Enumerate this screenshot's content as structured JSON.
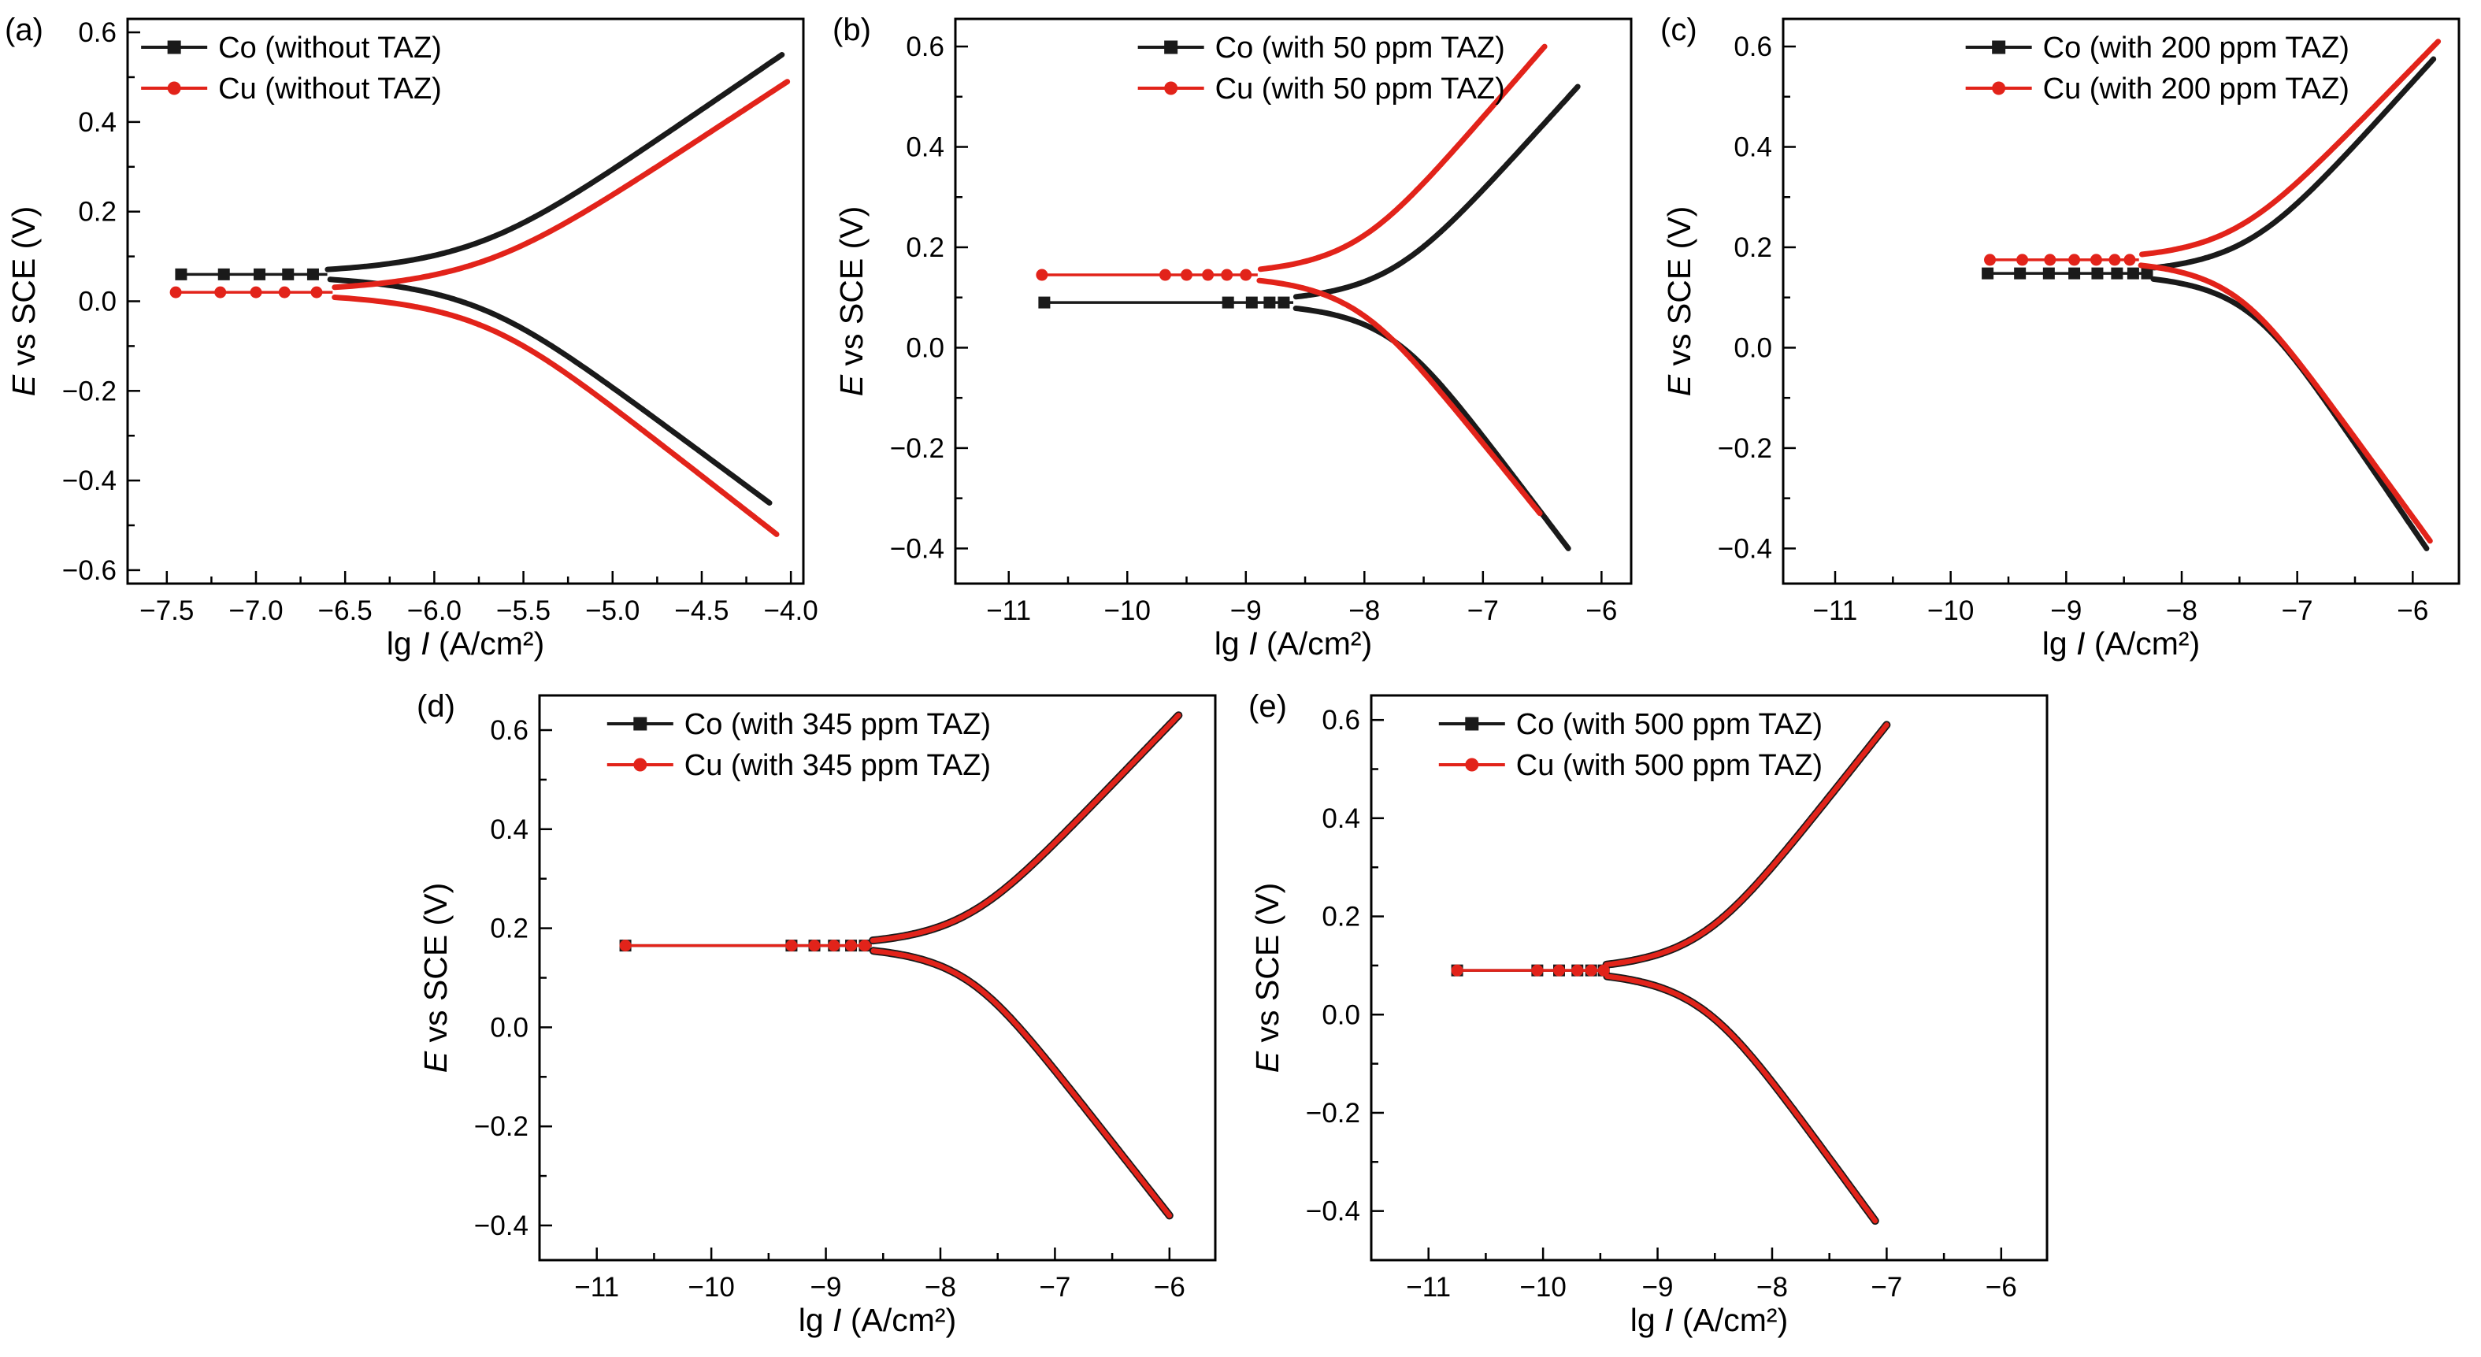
{
  "figure": {
    "background": "#ffffff",
    "colors": {
      "co": "#1a1a1a",
      "cu": "#e2231a"
    }
  },
  "chart_data": [
    {
      "type": "line",
      "panel": "(a)",
      "xlabel": {
        "pre": "lg ",
        "it": "I",
        "post": " (A/cm²)"
      },
      "ylabel": {
        "it": "E",
        "post": " vs SCE (V)"
      },
      "xlim": [
        -7.72,
        -3.93
      ],
      "ylim": [
        -0.63,
        0.63
      ],
      "xticks": [
        -7.5,
        -7.0,
        -6.5,
        -6.0,
        -5.5,
        -5.0,
        -4.5,
        -4.0
      ],
      "xtick_labels": [
        "−7.5",
        "−7.0",
        "−6.5",
        "−6.0",
        "−5.5",
        "−5.0",
        "−4.5",
        "−4.0"
      ],
      "yticks": [
        -0.6,
        -0.4,
        -0.2,
        0.0,
        0.2,
        0.4,
        0.6
      ],
      "ytick_labels": [
        "−0.6",
        "−0.4",
        "−0.2",
        "0.0",
        "0.2",
        "0.4",
        "0.6"
      ],
      "x_minor": 0.25,
      "y_minor": 0.1,
      "legend": {
        "x_frac": 0.02,
        "entries": [
          {
            "label": "Co (without TAZ)",
            "color": "#1a1a1a",
            "marker": "square"
          },
          {
            "label": "Cu (without TAZ)",
            "color": "#e2231a",
            "marker": "circle"
          }
        ]
      },
      "series": [
        {
          "name": "Co",
          "color": "#1a1a1a",
          "marker": "square",
          "ecorr": 0.06,
          "lg_icorr": -5.85,
          "tail_start": -7.42,
          "anodic_end": [
            -4.05,
            0.55
          ],
          "cathodic_end": [
            -4.12,
            -0.45
          ],
          "tail_markers": [
            -7.42,
            -7.18,
            -6.98,
            -6.82,
            -6.68
          ]
        },
        {
          "name": "Cu",
          "color": "#e2231a",
          "marker": "circle",
          "ecorr": 0.02,
          "lg_icorr": -5.82,
          "tail_start": -7.45,
          "anodic_end": [
            -4.02,
            0.49
          ],
          "cathodic_end": [
            -4.08,
            -0.52
          ],
          "tail_markers": [
            -7.45,
            -7.2,
            -7.0,
            -6.84,
            -6.66
          ]
        }
      ]
    },
    {
      "type": "line",
      "panel": "(b)",
      "xlabel": {
        "pre": "lg ",
        "it": "I",
        "post": " (A/cm²)"
      },
      "ylabel": {
        "it": "E",
        "post": " vs SCE (V)"
      },
      "xlim": [
        -11.45,
        -5.75
      ],
      "ylim": [
        -0.47,
        0.655
      ],
      "xticks": [
        -11,
        -10,
        -9,
        -8,
        -7,
        -6
      ],
      "xtick_labels": [
        "−11",
        "−10",
        "−9",
        "−8",
        "−7",
        "−6"
      ],
      "yticks": [
        -0.4,
        -0.2,
        0.0,
        0.2,
        0.4,
        0.6
      ],
      "ytick_labels": [
        "−0.4",
        "−0.2",
        "0.0",
        "0.2",
        "0.4",
        "0.6"
      ],
      "x_minor": 0.5,
      "y_minor": 0.1,
      "legend": {
        "x_frac": 0.27,
        "entries": [
          {
            "label": "Co (with 50 ppm TAZ)",
            "color": "#1a1a1a",
            "marker": "square"
          },
          {
            "label": "Cu (with 50 ppm TAZ)",
            "color": "#e2231a",
            "marker": "circle"
          }
        ]
      },
      "series": [
        {
          "name": "Co",
          "color": "#1a1a1a",
          "marker": "square",
          "ecorr": 0.09,
          "lg_icorr": -7.85,
          "tail_start": -10.7,
          "anodic_end": [
            -6.2,
            0.52
          ],
          "cathodic_end": [
            -6.28,
            -0.4
          ],
          "tail_markers": [
            -10.7,
            -9.15,
            -8.95,
            -8.8,
            -8.68
          ]
        },
        {
          "name": "Cu",
          "color": "#e2231a",
          "marker": "circle",
          "ecorr": 0.145,
          "lg_icorr": -8.15,
          "tail_start": -10.72,
          "anodic_end": [
            -6.48,
            0.6
          ],
          "cathodic_end": [
            -6.52,
            -0.33
          ],
          "tail_markers": [
            -10.72,
            -9.68,
            -9.5,
            -9.32,
            -9.16,
            -9.0
          ]
        }
      ]
    },
    {
      "type": "line",
      "panel": "(c)",
      "xlabel": {
        "pre": "lg ",
        "it": "I",
        "post": " (A/cm²)"
      },
      "ylabel": {
        "it": "E",
        "post": " vs SCE (V)"
      },
      "xlim": [
        -11.45,
        -5.6
      ],
      "ylim": [
        -0.47,
        0.655
      ],
      "xticks": [
        -11,
        -10,
        -9,
        -8,
        -7,
        -6
      ],
      "xtick_labels": [
        "−11",
        "−10",
        "−9",
        "−8",
        "−7",
        "−6"
      ],
      "yticks": [
        -0.4,
        -0.2,
        0.0,
        0.2,
        0.4,
        0.6
      ],
      "ytick_labels": [
        "−0.4",
        "−0.2",
        "0.0",
        "0.2",
        "0.4",
        "0.6"
      ],
      "x_minor": 0.5,
      "y_minor": 0.1,
      "legend": {
        "x_frac": 0.27,
        "entries": [
          {
            "label": "Co (with 200 ppm TAZ)",
            "color": "#1a1a1a",
            "marker": "square"
          },
          {
            "label": "Cu (with 200 ppm TAZ)",
            "color": "#e2231a",
            "marker": "circle"
          }
        ]
      },
      "series": [
        {
          "name": "Co",
          "color": "#1a1a1a",
          "marker": "square",
          "ecorr": 0.148,
          "lg_icorr": -7.5,
          "tail_start": -9.68,
          "anodic_end": [
            -5.82,
            0.575
          ],
          "cathodic_end": [
            -5.88,
            -0.4
          ],
          "tail_markers": [
            -9.68,
            -9.4,
            -9.15,
            -8.93,
            -8.73,
            -8.56,
            -8.42,
            -8.3
          ]
        },
        {
          "name": "Cu",
          "color": "#e2231a",
          "marker": "circle",
          "ecorr": 0.175,
          "lg_icorr": -7.62,
          "tail_start": -9.66,
          "anodic_end": [
            -5.78,
            0.61
          ],
          "cathodic_end": [
            -5.85,
            -0.385
          ],
          "tail_markers": [
            -9.66,
            -9.38,
            -9.14,
            -8.93,
            -8.74,
            -8.58,
            -8.45
          ]
        }
      ]
    },
    {
      "type": "line",
      "panel": "(d)",
      "xlabel": {
        "pre": "lg ",
        "it": "I",
        "post": " (A/cm²)"
      },
      "ylabel": {
        "it": "E",
        "post": " vs SCE (V)"
      },
      "xlim": [
        -11.5,
        -5.6
      ],
      "ylim": [
        -0.47,
        0.67
      ],
      "xticks": [
        -11,
        -10,
        -9,
        -8,
        -7,
        -6
      ],
      "xtick_labels": [
        "−11",
        "−10",
        "−9",
        "−8",
        "−7",
        "−6"
      ],
      "yticks": [
        -0.4,
        -0.2,
        0.0,
        0.2,
        0.4,
        0.6
      ],
      "ytick_labels": [
        "−0.4",
        "−0.2",
        "0.0",
        "0.2",
        "0.4",
        "0.6"
      ],
      "x_minor": 0.5,
      "y_minor": 0.1,
      "legend": {
        "x_frac": 0.1,
        "entries": [
          {
            "label": "Co (with 345 ppm TAZ)",
            "color": "#1a1a1a",
            "marker": "square"
          },
          {
            "label": "Cu (with 345 ppm TAZ)",
            "color": "#e2231a",
            "marker": "circle"
          }
        ]
      },
      "series": [
        {
          "name": "Co",
          "color": "#1a1a1a",
          "marker": "square",
          "stroke_width": 10,
          "ecorr": 0.165,
          "lg_icorr": -7.85,
          "tail_start": -10.75,
          "anodic_end": [
            -5.92,
            0.63
          ],
          "cathodic_end": [
            -6.0,
            -0.38
          ],
          "tail_markers": [
            -10.75,
            -9.3,
            -9.1,
            -8.93,
            -8.78,
            -8.66
          ]
        },
        {
          "name": "Cu",
          "color": "#e2231a",
          "marker": "circle",
          "stroke_width": 6.5,
          "ecorr": 0.165,
          "lg_icorr": -7.85,
          "tail_start": -10.75,
          "anodic_end": [
            -5.92,
            0.63
          ],
          "cathodic_end": [
            -6.0,
            -0.38
          ],
          "tail_markers": [
            -10.75,
            -9.3,
            -9.1,
            -8.93,
            -8.78,
            -8.66
          ]
        }
      ]
    },
    {
      "type": "line",
      "panel": "(e)",
      "xlabel": {
        "pre": "lg ",
        "it": "I",
        "post": " (A/cm²)"
      },
      "ylabel": {
        "it": "E",
        "post": " vs SCE (V)"
      },
      "xlim": [
        -11.5,
        -5.6
      ],
      "ylim": [
        -0.5,
        0.65
      ],
      "xticks": [
        -11,
        -10,
        -9,
        -8,
        -7,
        -6
      ],
      "xtick_labels": [
        "−11",
        "−10",
        "−9",
        "−8",
        "−7",
        "−6"
      ],
      "yticks": [
        -0.4,
        -0.2,
        0.0,
        0.2,
        0.4,
        0.6
      ],
      "ytick_labels": [
        "−0.4",
        "−0.2",
        "0.0",
        "0.2",
        "0.4",
        "0.6"
      ],
      "x_minor": 0.5,
      "y_minor": 0.1,
      "legend": {
        "x_frac": 0.1,
        "entries": [
          {
            "label": "Co (with 500 ppm TAZ)",
            "color": "#1a1a1a",
            "marker": "square"
          },
          {
            "label": "Cu (with 500 ppm TAZ)",
            "color": "#e2231a",
            "marker": "circle"
          }
        ]
      },
      "series": [
        {
          "name": "Co",
          "color": "#1a1a1a",
          "marker": "square",
          "stroke_width": 10,
          "ecorr": 0.09,
          "lg_icorr": -8.7,
          "tail_start": -10.75,
          "anodic_end": [
            -7.0,
            0.59
          ],
          "cathodic_end": [
            -7.1,
            -0.42
          ],
          "tail_markers": [
            -10.75,
            -10.05,
            -9.86,
            -9.7,
            -9.58,
            -9.47
          ]
        },
        {
          "name": "Cu",
          "color": "#e2231a",
          "marker": "circle",
          "stroke_width": 6.5,
          "ecorr": 0.09,
          "lg_icorr": -8.7,
          "tail_start": -10.75,
          "anodic_end": [
            -7.0,
            0.59
          ],
          "cathodic_end": [
            -7.1,
            -0.42
          ],
          "tail_markers": [
            -10.75,
            -10.05,
            -9.86,
            -9.7,
            -9.58,
            -9.47
          ]
        }
      ]
    }
  ]
}
